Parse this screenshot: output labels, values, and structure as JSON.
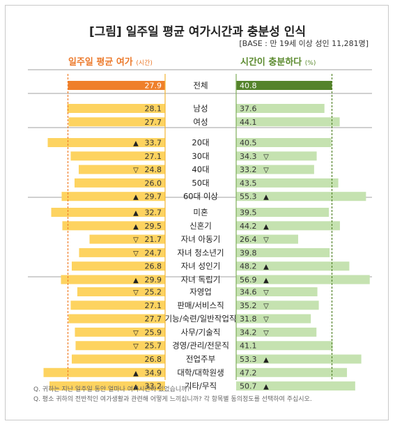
{
  "title": "[그림] 일주일 평균 여가시간과 충분성 인식",
  "base_note": "[BASE : 만 19세 이상 성인 11,281명]",
  "left_header": {
    "label": "일주일 평균 여가",
    "unit": "(시간)"
  },
  "right_header": {
    "label": "시간이 충분하다",
    "unit": "(%)"
  },
  "colors": {
    "orange": "#ef7f2a",
    "yellow": "#fdd360",
    "green": "#c5e2b0",
    "dark_green": "#54832b"
  },
  "markers": {
    "up": "▲",
    "down": "▽"
  },
  "chart_data": {
    "type": "bar",
    "categories": [
      "전체",
      "남성",
      "여성",
      "20대",
      "30대",
      "40대",
      "50대",
      "60대 이상",
      "미혼",
      "신혼기",
      "자녀 아동기",
      "자녀 청소년기",
      "자녀 성인기",
      "자녀 독립기",
      "자영업",
      "판매/서비스직",
      "기능/숙련/일반작업직",
      "사무/기술직",
      "경영/관리/전문직",
      "전업주부",
      "대학/대학원생",
      "기타/무직"
    ],
    "groups": [
      [
        0
      ],
      [
        1,
        2
      ],
      [
        3,
        4,
        5,
        6,
        7
      ],
      [
        8,
        9,
        10,
        11,
        12,
        13
      ],
      [
        14,
        15,
        16,
        17,
        18,
        19,
        20,
        21
      ]
    ],
    "series": [
      {
        "name": "일주일 평균 여가",
        "unit": "(시간)",
        "values": [
          27.9,
          28.1,
          27.7,
          33.7,
          27.1,
          24.8,
          26.0,
          29.7,
          32.7,
          29.5,
          21.7,
          24.7,
          26.8,
          29.9,
          25.2,
          27.1,
          27.7,
          25.9,
          25.7,
          26.8,
          34.9,
          33.2
        ],
        "value_labels": [
          "27.9",
          "28.1",
          "27.7",
          "33.7",
          "27.1",
          "24.8",
          "26.0",
          "29.7",
          "32.7",
          "29.5",
          "21.7",
          "24.7",
          "26.8",
          "29.9",
          "25.2",
          "27.1",
          "27.7",
          "25.9",
          "25.7",
          "26.8",
          "34.9",
          "33.2"
        ],
        "signs": [
          "",
          "",
          "",
          "up",
          "",
          "down",
          "",
          "up",
          "up",
          "up",
          "down",
          "down",
          "",
          "up",
          "down",
          "",
          "",
          "down",
          "down",
          "",
          "up",
          "up"
        ]
      },
      {
        "name": "시간이 충분하다",
        "unit": "(%)",
        "values": [
          40.8,
          37.6,
          44.1,
          40.5,
          34.3,
          33.2,
          43.5,
          55.3,
          39.5,
          44.2,
          26.4,
          39.8,
          48.2,
          56.9,
          34.6,
          35.2,
          31.8,
          34.2,
          41.1,
          53.3,
          47.2,
          50.7
        ],
        "value_labels": [
          "40.8",
          "37.6",
          "44.1",
          "40.5",
          "34.3",
          "33.2",
          "43.5",
          "55.3",
          "39.5",
          "44.2",
          "26.4",
          "39.8",
          "48.2",
          "56.9",
          "34.6",
          "35.2",
          "31.8",
          "34.2",
          "41.1",
          "53.3",
          "47.2",
          "50.7"
        ],
        "signs": [
          "",
          "",
          "",
          "",
          "down",
          "down",
          "",
          "up",
          "",
          "up",
          "down",
          "",
          "up",
          "up",
          "down",
          "down",
          "down",
          "down",
          "",
          "up",
          "",
          "up"
        ]
      }
    ],
    "reference_lines": {
      "left": 27.9,
      "right": 40.8
    }
  },
  "footnotes": [
    "Q. 귀하는 지난 일주일 동안 얼마나 여가시간이 있었습니까?",
    "Q. 평소 귀하의 전반적인 여가생활과 관련해 어떻게 느끼십니까? 각 항목별 동의정도를 선택하여 주십시오."
  ]
}
